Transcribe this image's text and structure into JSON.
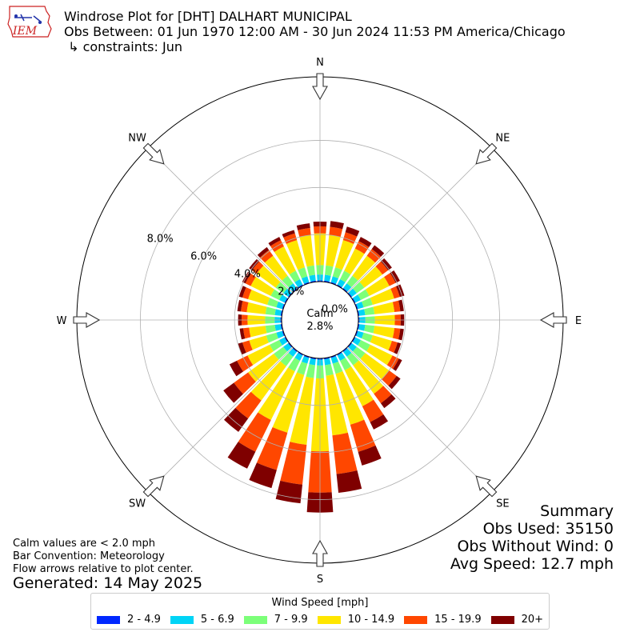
{
  "header": {
    "line1": "Windrose Plot for [DHT] DALHART MUNICIPAL",
    "line2": "Obs Between: 01 Jun 1970 12:00 AM - 30 Jun 2024 11:53 PM America/Chicago",
    "line3": " ↳ constraints: Jun",
    "logo_text": "IEM"
  },
  "summary": {
    "title": "Summary",
    "obs_used": "Obs Used: 35150",
    "obs_without_wind": "Obs Without Wind: 0",
    "avg_speed": "Avg Speed: 12.7 mph"
  },
  "notes": {
    "calm_note": "Calm values are < 2.0 mph",
    "bar_convention": "Bar Convention: Meteorology",
    "flow_arrows": "Flow arrows relative to plot center.",
    "generated": "Generated: 14 May 2025"
  },
  "legend": {
    "title": "Wind Speed [mph]"
  },
  "chart_data": {
    "type": "windrose",
    "calm_label": "Calm",
    "calm_value": "2.8%",
    "directions": [
      "N",
      "NE",
      "E",
      "SE",
      "S",
      "SW",
      "W",
      "NW"
    ],
    "radial_ticks": [
      "0.0%",
      "2.0%",
      "4.0%",
      "6.0%",
      "8.0%"
    ],
    "radial_tick_values": [
      0,
      2,
      4,
      6,
      8
    ],
    "r_max": 10.7,
    "r_base": 2.0,
    "bins": [
      {
        "name": "2 - 4.9",
        "color": "#0028ff"
      },
      {
        "name": "5 - 6.9",
        "color": "#00d4f6"
      },
      {
        "name": "7 - 9.9",
        "color": "#7cff79"
      },
      {
        "name": "10 - 14.9",
        "color": "#ffe600"
      },
      {
        "name": "15 - 19.9",
        "color": "#ff4700"
      },
      {
        "name": "20+",
        "color": "#7f0000"
      }
    ],
    "sectors": [
      {
        "dir_deg": 0,
        "values": [
          0.05,
          0.25,
          0.4,
          1.35,
          0.3,
          0.2
        ]
      },
      {
        "dir_deg": 10,
        "values": [
          0.05,
          0.25,
          0.4,
          1.3,
          0.35,
          0.25
        ]
      },
      {
        "dir_deg": 20,
        "values": [
          0.05,
          0.25,
          0.4,
          1.2,
          0.35,
          0.25
        ]
      },
      {
        "dir_deg": 30,
        "values": [
          0.05,
          0.25,
          0.4,
          1.05,
          0.35,
          0.2
        ]
      },
      {
        "dir_deg": 40,
        "values": [
          0.05,
          0.25,
          0.4,
          1.05,
          0.35,
          0.2
        ]
      },
      {
        "dir_deg": 50,
        "values": [
          0.05,
          0.25,
          0.4,
          0.95,
          0.3,
          0.2
        ]
      },
      {
        "dir_deg": 60,
        "values": [
          0.05,
          0.25,
          0.4,
          0.95,
          0.3,
          0.2
        ]
      },
      {
        "dir_deg": 70,
        "values": [
          0.05,
          0.25,
          0.4,
          0.95,
          0.25,
          0.2
        ]
      },
      {
        "dir_deg": 80,
        "values": [
          0.05,
          0.25,
          0.4,
          0.85,
          0.25,
          0.15
        ]
      },
      {
        "dir_deg": 90,
        "values": [
          0.05,
          0.25,
          0.4,
          0.85,
          0.25,
          0.15
        ]
      },
      {
        "dir_deg": 100,
        "values": [
          0.05,
          0.25,
          0.4,
          0.85,
          0.25,
          0.15
        ]
      },
      {
        "dir_deg": 110,
        "values": [
          0.05,
          0.25,
          0.4,
          0.85,
          0.25,
          0.15
        ]
      },
      {
        "dir_deg": 120,
        "values": [
          0.05,
          0.25,
          0.45,
          1.05,
          0.3,
          0.15
        ]
      },
      {
        "dir_deg": 130,
        "values": [
          0.05,
          0.25,
          0.45,
          1.25,
          0.4,
          0.2
        ]
      },
      {
        "dir_deg": 140,
        "values": [
          0.05,
          0.25,
          0.45,
          1.5,
          0.5,
          0.25
        ]
      },
      {
        "dir_deg": 150,
        "values": [
          0.05,
          0.25,
          0.45,
          1.7,
          0.75,
          0.35
        ]
      },
      {
        "dir_deg": 160,
        "values": [
          0.05,
          0.25,
          0.45,
          2.25,
          1.2,
          0.6
        ]
      },
      {
        "dir_deg": 170,
        "values": [
          0.05,
          0.25,
          0.45,
          2.55,
          1.65,
          0.8
        ]
      },
      {
        "dir_deg": 180,
        "values": [
          0.05,
          0.25,
          0.55,
          3.1,
          1.75,
          0.85
        ]
      },
      {
        "dir_deg": 190,
        "values": [
          0.05,
          0.25,
          0.55,
          2.85,
          1.7,
          0.8
        ]
      },
      {
        "dir_deg": 200,
        "values": [
          0.05,
          0.25,
          0.5,
          2.55,
          1.65,
          0.8
        ]
      },
      {
        "dir_deg": 210,
        "values": [
          0.05,
          0.25,
          0.5,
          2.3,
          1.5,
          0.8
        ]
      },
      {
        "dir_deg": 220,
        "values": [
          0.05,
          0.25,
          0.5,
          1.8,
          0.95,
          0.7
        ]
      },
      {
        "dir_deg": 230,
        "values": [
          0.05,
          0.25,
          0.5,
          1.35,
          0.75,
          0.55
        ]
      },
      {
        "dir_deg": 240,
        "values": [
          0.05,
          0.25,
          0.45,
          1.05,
          0.5,
          0.35
        ]
      },
      {
        "dir_deg": 250,
        "values": [
          0.05,
          0.25,
          0.45,
          0.75,
          0.3,
          0.2
        ]
      },
      {
        "dir_deg": 260,
        "values": [
          0.05,
          0.25,
          0.4,
          0.7,
          0.25,
          0.15
        ]
      },
      {
        "dir_deg": 270,
        "values": [
          0.05,
          0.25,
          0.4,
          0.75,
          0.25,
          0.15
        ]
      },
      {
        "dir_deg": 280,
        "values": [
          0.05,
          0.25,
          0.4,
          0.8,
          0.25,
          0.15
        ]
      },
      {
        "dir_deg": 290,
        "values": [
          0.05,
          0.25,
          0.4,
          0.85,
          0.25,
          0.15
        ]
      },
      {
        "dir_deg": 300,
        "values": [
          0.05,
          0.25,
          0.4,
          0.95,
          0.25,
          0.15
        ]
      },
      {
        "dir_deg": 310,
        "values": [
          0.05,
          0.25,
          0.4,
          1.0,
          0.25,
          0.15
        ]
      },
      {
        "dir_deg": 320,
        "values": [
          0.05,
          0.25,
          0.4,
          1.05,
          0.3,
          0.15
        ]
      },
      {
        "dir_deg": 330,
        "values": [
          0.05,
          0.25,
          0.4,
          1.15,
          0.3,
          0.15
        ]
      },
      {
        "dir_deg": 340,
        "values": [
          0.05,
          0.25,
          0.4,
          1.2,
          0.3,
          0.15
        ]
      },
      {
        "dir_deg": 350,
        "values": [
          0.05,
          0.25,
          0.4,
          1.3,
          0.3,
          0.2
        ]
      }
    ]
  }
}
